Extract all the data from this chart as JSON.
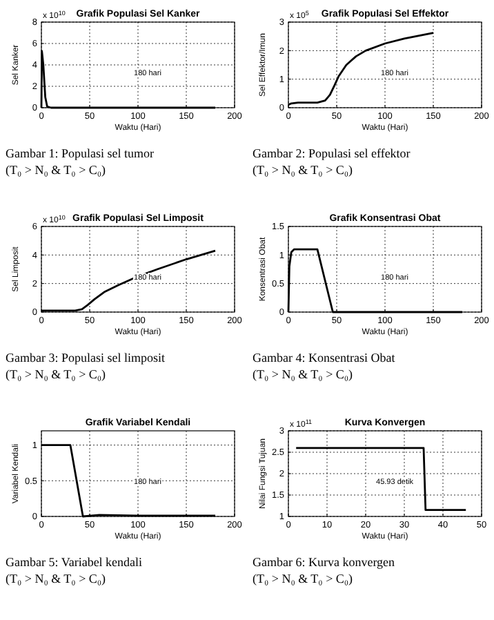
{
  "chart_data": [
    {
      "type": "line",
      "title": "Grafik Populasi Sel Kanker",
      "xlabel": "Waktu (Hari)",
      "ylabel": "Sel Kanker",
      "xlim": [
        0,
        200
      ],
      "xticks": [
        0,
        50,
        100,
        150,
        200
      ],
      "ylim": [
        0,
        8
      ],
      "yticks": [
        0,
        2,
        4,
        6,
        8
      ],
      "grid": true,
      "marker": "none",
      "line_style": "solid",
      "color": "#000000",
      "x": [
        0,
        0.5,
        2,
        4,
        6,
        10,
        180
      ],
      "values": [
        0,
        5.3,
        4,
        1,
        0.1,
        0,
        0
      ],
      "annotations": [
        "x 10$^{10}$",
        "180 hari",
        "Gambar 1: Populasi sel tumor (T₀ > N₀ & T₀ > C₀)"
      ]
    },
    {
      "type": "line",
      "title": "Grafik Populasi Sel Effektor",
      "xlabel": "Waktu (Hari)",
      "ylabel": "Sel Effektor/Imun",
      "xlim": [
        0,
        200
      ],
      "xticks": [
        0,
        50,
        100,
        150,
        200
      ],
      "ylim": [
        0,
        3
      ],
      "yticks": [
        0,
        1,
        2,
        3
      ],
      "grid": true,
      "marker": "none",
      "line_style": "solid",
      "color": "#000000",
      "x": [
        0,
        3,
        10,
        30,
        38,
        43,
        48,
        52,
        60,
        70,
        80,
        100,
        120,
        150
      ],
      "values": [
        0.1,
        0.15,
        0.18,
        0.18,
        0.25,
        0.45,
        0.8,
        1.1,
        1.5,
        1.8,
        2.0,
        2.25,
        2.42,
        2.62
      ],
      "annotations": [
        "x 10$^{5}$",
        "180 hari",
        "Gambar 2: Populasi sel effektor (T₀ > N₀ & T₀ > C₀)"
      ]
    },
    {
      "type": "line",
      "title": "Grafik Populasi Sel Limposit",
      "xlabel": "Waktu (Hari)",
      "ylabel": "Sel Limposit",
      "xlim": [
        0,
        200
      ],
      "xticks": [
        0,
        50,
        100,
        150,
        200
      ],
      "ylim": [
        0,
        6
      ],
      "yticks": [
        0,
        2,
        4,
        6
      ],
      "grid": true,
      "marker": "none",
      "line_style": "solid",
      "color": "#000000",
      "x": [
        0,
        35,
        42,
        48,
        55,
        65,
        80,
        100,
        120,
        150,
        180
      ],
      "values": [
        0.1,
        0.1,
        0.2,
        0.5,
        0.9,
        1.4,
        1.9,
        2.5,
        3.0,
        3.7,
        4.3
      ],
      "annotations": [
        "x 10$^{10}$",
        "180 hari",
        "Gambar 3: Populasi sel limposit (T₀ > N₀ & T₀ > C₀)"
      ]
    },
    {
      "type": "line",
      "title": "Grafik Konsentrasi Obat",
      "xlabel": "Waktu (Hari)",
      "ylabel": "Konsentrasi Obat",
      "xlim": [
        0,
        200
      ],
      "xticks": [
        0,
        50,
        100,
        150,
        200
      ],
      "ylim": [
        0,
        1.5
      ],
      "yticks": [
        0,
        0.5,
        1,
        1.5
      ],
      "grid": true,
      "marker": "none",
      "line_style": "solid",
      "color": "#000000",
      "x": [
        0,
        1,
        3,
        6,
        30,
        46,
        180
      ],
      "values": [
        0,
        0.8,
        1.05,
        1.1,
        1.1,
        0,
        0
      ],
      "annotations": [
        "180 hari",
        "Gambar 4: Konsentrasi Obat (T₀ > N₀ & T₀ > C₀)"
      ]
    },
    {
      "type": "line",
      "title": "Grafik Variabel Kendali",
      "xlabel": "Waktu (Hari)",
      "ylabel": "Variabel Kendali",
      "xlim": [
        0,
        200
      ],
      "xticks": [
        0,
        50,
        100,
        150,
        200
      ],
      "ylim": [
        0,
        1.2
      ],
      "yticks": [
        0,
        0.5,
        1
      ],
      "grid": true,
      "marker": "none",
      "line_style": "solid",
      "color": "#000000",
      "x": [
        0,
        30,
        43,
        60,
        100,
        180
      ],
      "values": [
        1,
        1,
        0,
        0.02,
        0.01,
        0.01
      ],
      "annotations": [
        "180 hari",
        "Gambar 5: Variabel kendali (T₀ > N₀ & T₀ > C₀)"
      ]
    },
    {
      "type": "line",
      "title": "Kurva Konvergen",
      "xlabel": "Waktu (Hari)",
      "ylabel": "Nilai Fungsi Tujuan",
      "xlim": [
        0,
        50
      ],
      "xticks": [
        0,
        10,
        20,
        30,
        40,
        50
      ],
      "ylim": [
        1,
        3
      ],
      "yticks": [
        1,
        1.5,
        2,
        2.5,
        3
      ],
      "grid": true,
      "marker": "none",
      "line_style": "solid",
      "color": "#000000",
      "x": [
        2,
        35,
        35.5,
        45.93
      ],
      "values": [
        2.6,
        2.6,
        1.15,
        1.15
      ],
      "annotations": [
        "x 10$^{11}$",
        "45.93 detik",
        "Gambar 6: Kurva konvergen (T₀ > N₀ & T₀ > C₀)"
      ]
    }
  ]
}
